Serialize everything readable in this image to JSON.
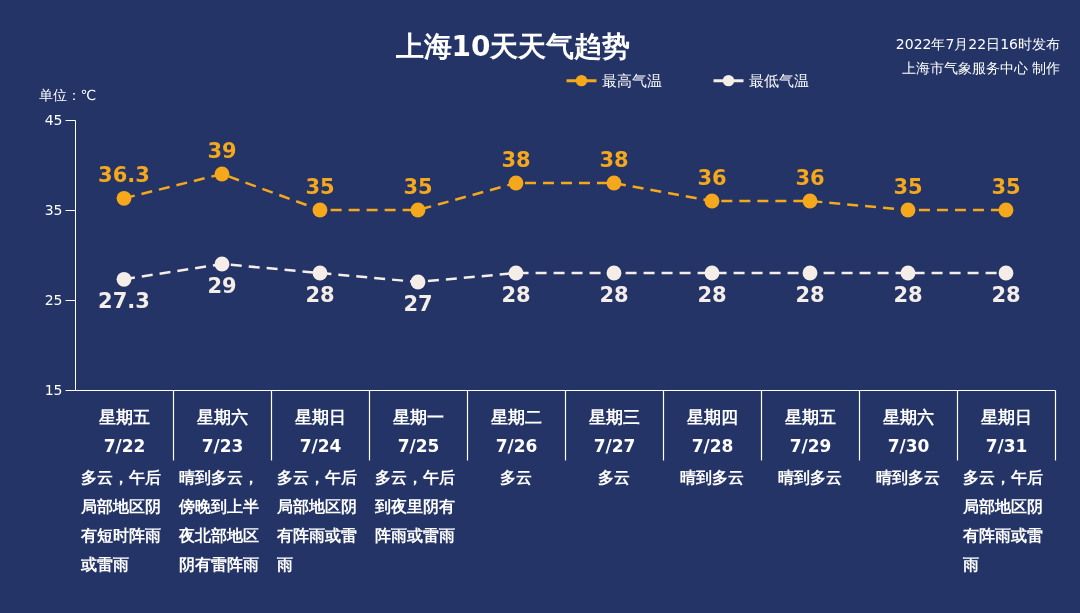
{
  "chart_data": {
    "type": "line",
    "title": "上海10天天气趋势",
    "ylabel": "单位：℃",
    "categories": [
      "星期五\n7/22",
      "星期六\n7/23",
      "星期日\n7/24",
      "星期一\n7/25",
      "星期二\n7/26",
      "星期三\n7/27",
      "星期四\n7/28",
      "星期五\n7/29",
      "星期六\n7/30",
      "星期日\n7/31"
    ],
    "series": [
      {
        "name": "最高气温",
        "color": "#f5a81c",
        "values": [
          36.3,
          39,
          35,
          35,
          38,
          38,
          36,
          36,
          35,
          35
        ]
      },
      {
        "name": "最低气温",
        "color": "#f4ede8",
        "values": [
          27.3,
          29,
          28,
          27,
          28,
          28,
          28,
          28,
          28,
          28
        ]
      }
    ],
    "ylim": [
      15,
      45
    ],
    "yticks": [
      15,
      25,
      35,
      45
    ],
    "legend": "top",
    "marker": "circle",
    "line_style": "dashed",
    "data_labels": true,
    "annotations": [
      "2022年7月22日16时发布",
      "上海市气象服务中心 制作",
      "多云，午后局部地区阴有短时阵雨或雷雨",
      "晴到多云，傍晚到上半夜北部地区阴有雷阵雨",
      "多云，午后局部地区阴有阵雨或雷雨",
      "多云，午后到夜里阴有阵雨或雷雨",
      "多云",
      "多云",
      "晴到多云",
      "晴到多云",
      "晴到多云",
      "多云，午后局部地区阴有阵雨或雷雨"
    ]
  }
}
